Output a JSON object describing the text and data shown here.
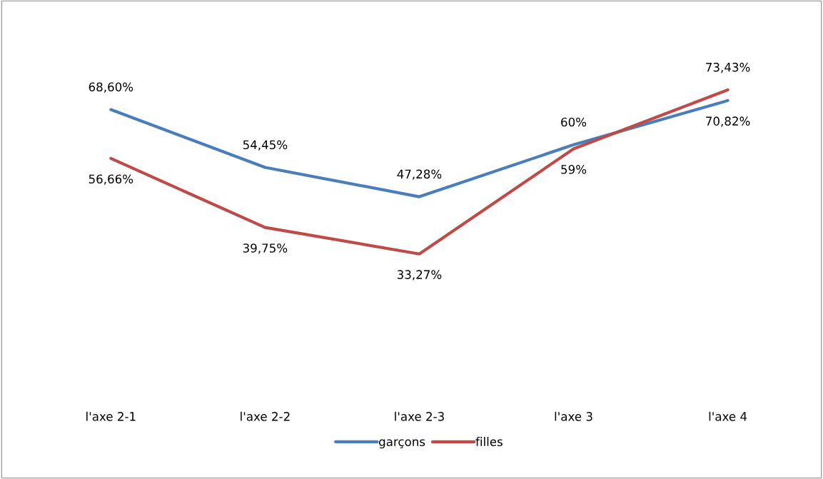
{
  "chart_data": {
    "type": "line",
    "categories": [
      "l'axe 2-1",
      "l'axe 2-2",
      "l'axe 2-3",
      "l'axe 3",
      "l'axe 4"
    ],
    "series": [
      {
        "name": "garçons",
        "color": "#4a7ebb",
        "values": [
          68.6,
          54.45,
          47.28,
          60,
          70.82
        ],
        "value_labels": [
          "68,60%",
          "54,45%",
          "47,28%",
          "60%",
          "70,82%"
        ]
      },
      {
        "name": "filles",
        "color": "#be4b48",
        "values": [
          56.66,
          39.75,
          33.27,
          59,
          73.43
        ],
        "value_labels": [
          "56,66%",
          "39,75%",
          "33,27%",
          "59%",
          "73,43%"
        ]
      }
    ],
    "legend": "bottom",
    "grid": false,
    "marker": "none",
    "line_style": "solid"
  }
}
